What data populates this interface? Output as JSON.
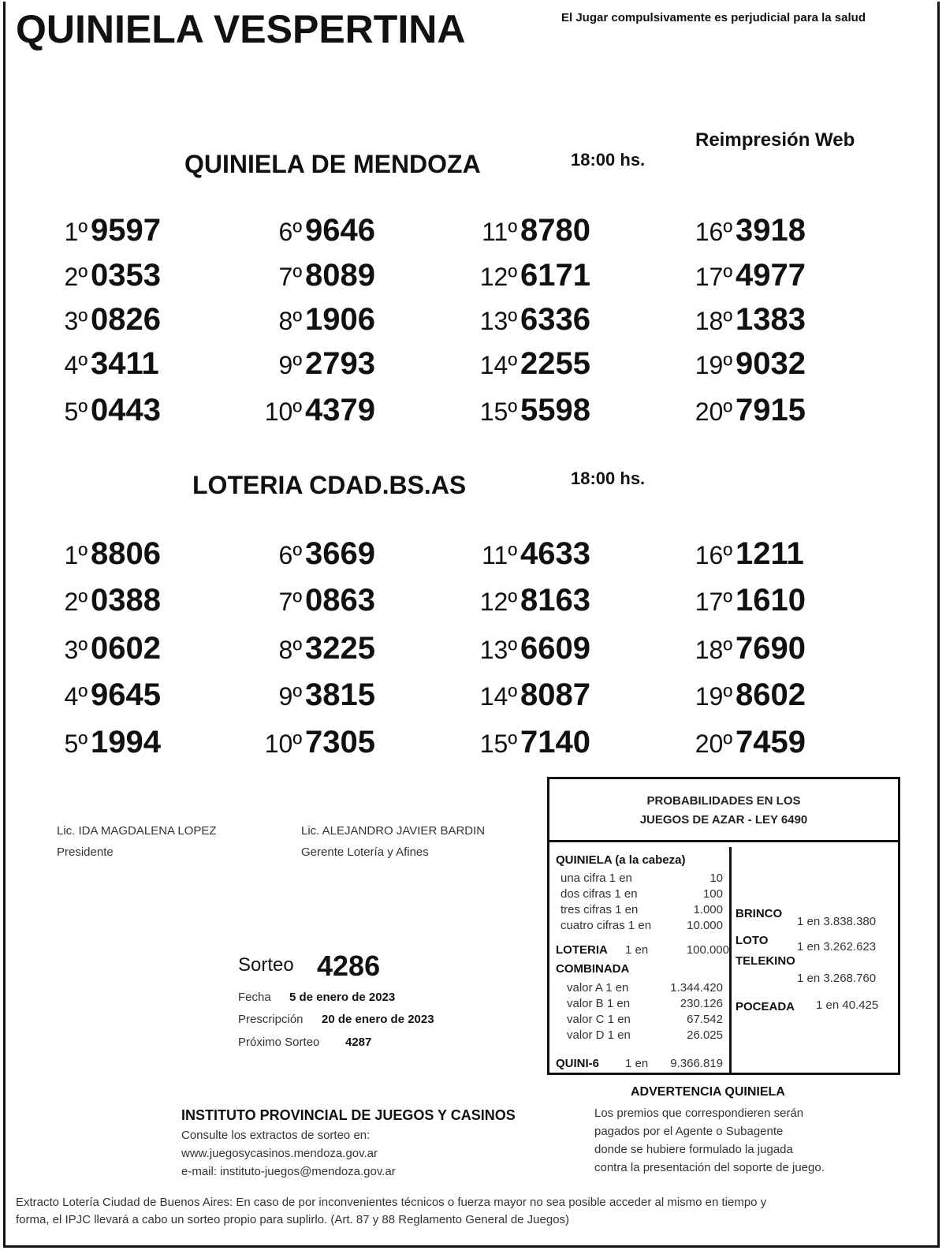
{
  "header": {
    "title": "QUINIELA VESPERTINA",
    "warning": "El Jugar compulsivamente es perjudicial para la salud",
    "reprint": "Reimpresión Web"
  },
  "draws": [
    {
      "name": "QUINIELA  DE MENDOZA",
      "time": "18:00  hs.",
      "results": [
        {
          "pos": "1º",
          "num": "9597"
        },
        {
          "pos": "2º",
          "num": "0353"
        },
        {
          "pos": "3º",
          "num": "0826"
        },
        {
          "pos": "4º",
          "num": "3411"
        },
        {
          "pos": "5º",
          "num": "0443"
        },
        {
          "pos": "6º",
          "num": "9646"
        },
        {
          "pos": "7º",
          "num": "8089"
        },
        {
          "pos": "8º",
          "num": "1906"
        },
        {
          "pos": "9º",
          "num": "2793"
        },
        {
          "pos": "10º",
          "num": "4379"
        },
        {
          "pos": "11º",
          "num": "8780"
        },
        {
          "pos": "12º",
          "num": "6171"
        },
        {
          "pos": "13º",
          "num": "6336"
        },
        {
          "pos": "14º",
          "num": "2255"
        },
        {
          "pos": "15º",
          "num": "5598"
        },
        {
          "pos": "16º",
          "num": "3918"
        },
        {
          "pos": "17º",
          "num": "4977"
        },
        {
          "pos": "18º",
          "num": "1383"
        },
        {
          "pos": "19º",
          "num": "9032"
        },
        {
          "pos": "20º",
          "num": "7915"
        }
      ]
    },
    {
      "name": "LOTERIA CDAD.BS.AS",
      "time": "18:00  hs.",
      "results": [
        {
          "pos": "1º",
          "num": "8806"
        },
        {
          "pos": "2º",
          "num": "0388"
        },
        {
          "pos": "3º",
          "num": "0602"
        },
        {
          "pos": "4º",
          "num": "9645"
        },
        {
          "pos": "5º",
          "num": "1994"
        },
        {
          "pos": "6º",
          "num": "3669"
        },
        {
          "pos": "7º",
          "num": "0863"
        },
        {
          "pos": "8º",
          "num": "3225"
        },
        {
          "pos": "9º",
          "num": "3815"
        },
        {
          "pos": "10º",
          "num": "7305"
        },
        {
          "pos": "11º",
          "num": "4633"
        },
        {
          "pos": "12º",
          "num": "8163"
        },
        {
          "pos": "13º",
          "num": "6609"
        },
        {
          "pos": "14º",
          "num": "8087"
        },
        {
          "pos": "15º",
          "num": "7140"
        },
        {
          "pos": "16º",
          "num": "1211"
        },
        {
          "pos": "17º",
          "num": "1610"
        },
        {
          "pos": "18º",
          "num": "7690"
        },
        {
          "pos": "19º",
          "num": "8602"
        },
        {
          "pos": "20º",
          "num": "7459"
        }
      ]
    }
  ],
  "signatures": [
    {
      "name": "Lic. IDA MAGDALENA LOPEZ",
      "role": "Presidente"
    },
    {
      "name": "Lic. ALEJANDRO JAVIER BARDIN",
      "role": "Gerente Lotería y Afines"
    }
  ],
  "sorteo": {
    "label": "Sorteo",
    "number": "4286",
    "fecha_label": "Fecha",
    "fecha": "5 de enero de 2023",
    "prescripcion_label": "Prescripción",
    "prescripcion": "20 de enero de 2023",
    "proximo_label": "Próximo Sorteo",
    "proximo": "4287"
  },
  "probabilities": {
    "title1": "PROBABILIDADES EN LOS",
    "title2": "JUEGOS DE AZAR - LEY 6490",
    "quiniela_label": "QUINIELA (a la cabeza)",
    "quiniela": [
      {
        "label": "una cifra  1 en",
        "value": "10"
      },
      {
        "label": "dos cifras 1 en",
        "value": "100"
      },
      {
        "label": "tres cifras 1 en",
        "value": "1.000"
      },
      {
        "label": "cuatro cifras 1 en",
        "value": "10.000"
      }
    ],
    "loteria_label": "LOTERIA",
    "loteria_en": "1 en",
    "loteria_value": "100.000",
    "combinada_label": "COMBINADA",
    "combinada": [
      {
        "label": "valor A 1 en",
        "value": "1.344.420"
      },
      {
        "label": "valor B 1 en",
        "value": "230.126"
      },
      {
        "label": "valor C 1 en",
        "value": "67.542"
      },
      {
        "label": "valor D 1 en",
        "value": "26.025"
      }
    ],
    "quini6_label": "QUINI-6",
    "quini6_en": "1 en",
    "quini6_value": "9.366.819",
    "brinco_label": "BRINCO",
    "brinco_value": "1 en 3.838.380",
    "loto_label": "LOTO",
    "loto_value": "1 en 3.262.623",
    "telekino_label": "TELEKINO",
    "telekino_value": "1 en 3.268.760",
    "poceada_label": "POCEADA",
    "poceada_value": "1 en 40.425"
  },
  "advertencia": {
    "title": "ADVERTENCIA QUINIELA",
    "lines": [
      "Los premios que correspondieren serán",
      "pagados por el Agente o Subagente",
      "donde se hubiere formulado la jugada",
      "contra la presentación del soporte de juego."
    ]
  },
  "institute": {
    "name": "INSTITUTO PROVINCIAL DE JUEGOS Y CASINOS",
    "line1": "Consulte los extractos de sorteo en:",
    "web": "www.juegosycasinos.mendoza.gov.ar",
    "email": "e-mail:  instituto-juegos@mendoza.gov.ar"
  },
  "footer": {
    "line1": "Extracto Lotería Ciudad de Buenos Aires: En caso de por inconvenientes técnicos o fuerza mayor no sea posible acceder al mismo en tiempo y",
    "line2": "forma, el IPJC llevará a cabo un sorteo propio para suplirlo. (Art. 87 y 88 Reglamento General de Juegos)"
  }
}
